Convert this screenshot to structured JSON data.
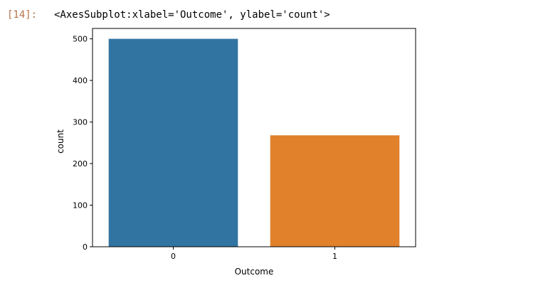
{
  "cell": {
    "prompt": "[14]:",
    "output_text": "<AxesSubplot:xlabel='Outcome', ylabel='count'>"
  },
  "colors": {
    "prompt": "#b5754a",
    "bar_0": "#3274a1",
    "bar_1": "#e1812c"
  },
  "chart_data": {
    "type": "bar",
    "categories": [
      "0",
      "1"
    ],
    "values": [
      500,
      268
    ],
    "xlabel": "Outcome",
    "ylabel": "count",
    "ylim": [
      0,
      525
    ],
    "yticks": [
      0,
      100,
      200,
      300,
      400,
      500
    ],
    "grid": false,
    "legend": "none"
  }
}
